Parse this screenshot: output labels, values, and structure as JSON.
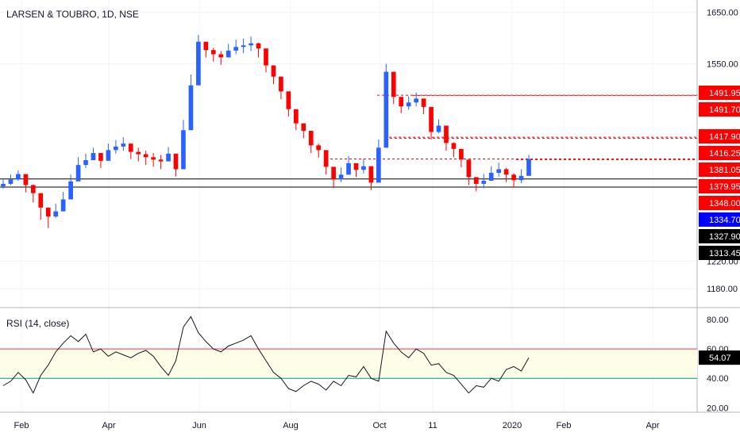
{
  "chart_data": [
    {
      "type": "candlestick",
      "title": "LARSEN & TOUBRO, 1D, NSE",
      "x_ticks": [
        "Feb",
        "Apr",
        "Jun",
        "Aug",
        "Oct",
        "11",
        "2020",
        "Feb",
        "Apr"
      ],
      "y_ticks": [
        "1650.00",
        "1550.00",
        "1220.00",
        "1180.00"
      ],
      "ylim": [
        1160,
        1665
      ],
      "axis_scale": "logarithmic",
      "horizontal_lines": [
        1348.0,
        1334.7
      ],
      "dashed_levels": [
        1491.95,
        1491.7,
        1417.9,
        1416.25,
        1381.05,
        1379.95
      ],
      "price_tags": [
        {
          "label": "1491.95",
          "value": 1491.95,
          "color": "#ff0000"
        },
        {
          "label": "1491.70",
          "value": 1491.7,
          "color": "#ff0000"
        },
        {
          "label": "1417.90",
          "value": 1417.9,
          "color": "#ff0000"
        },
        {
          "label": "1416.25",
          "value": 1416.25,
          "color": "#ff0000"
        },
        {
          "label": "1381.05",
          "value": 1381.05,
          "color": "#ff0000"
        },
        {
          "label": "1379.95",
          "value": 1379.95,
          "color": "#ff0000"
        },
        {
          "label": "1348.00",
          "value": 1348.0,
          "color": "#ff0000"
        },
        {
          "label": "1334.70",
          "value": 1334.7,
          "color": "#0000ff"
        },
        {
          "label": "1327.90",
          "value": 1327.9,
          "color": "#000000"
        },
        {
          "label": "1313.45",
          "value": 1313.45,
          "color": "#000000"
        }
      ],
      "series": [
        {
          "name": "close",
          "values": [
            1340,
            1347,
            1356,
            1338,
            1325,
            1302,
            1288,
            1296,
            1315,
            1344,
            1371,
            1379,
            1391,
            1378,
            1396,
            1402,
            1407,
            1393,
            1389,
            1384,
            1380,
            1377,
            1390,
            1364,
            1430,
            1510,
            1592,
            1576,
            1568,
            1562,
            1575,
            1582,
            1585,
            1589,
            1579,
            1547,
            1526,
            1499,
            1467,
            1442,
            1429,
            1404,
            1396,
            1368,
            1347,
            1355,
            1374,
            1363,
            1369,
            1342,
            1400,
            1535,
            1489,
            1472,
            1479,
            1486,
            1471,
            1427,
            1438,
            1408,
            1398,
            1380,
            1351,
            1340,
            1345,
            1358,
            1364,
            1355,
            1346,
            1353,
            1381
          ]
        },
        {
          "name": "upper_wick",
          "values": [
            1348,
            1355,
            1362,
            1349,
            1339,
            1311,
            1300,
            1308,
            1327,
            1355,
            1384,
            1390,
            1400,
            1391,
            1407,
            1413,
            1418,
            1405,
            1400,
            1395,
            1391,
            1388,
            1401,
            1378,
            1448,
            1530,
            1605,
            1590,
            1580,
            1574,
            1588,
            1596,
            1598,
            1602,
            1590,
            1560,
            1538,
            1511,
            1480,
            1453,
            1440,
            1415,
            1407,
            1380,
            1358,
            1367,
            1386,
            1373,
            1381,
            1354,
            1414,
            1550,
            1501,
            1484,
            1490,
            1497,
            1482,
            1439,
            1449,
            1420,
            1409,
            1391,
            1362,
            1350,
            1356,
            1369,
            1375,
            1366,
            1357,
            1364,
            1388
          ]
        },
        {
          "name": "lower_wick",
          "values": [
            1332,
            1338,
            1345,
            1326,
            1310,
            1283,
            1270,
            1286,
            1305,
            1332,
            1359,
            1366,
            1380,
            1366,
            1384,
            1390,
            1395,
            1381,
            1377,
            1371,
            1368,
            1364,
            1378,
            1352,
            1417,
            1497,
            1570,
            1562,
            1554,
            1548,
            1562,
            1568,
            1570,
            1574,
            1562,
            1534,
            1512,
            1485,
            1454,
            1430,
            1416,
            1391,
            1383,
            1355,
            1333,
            1343,
            1362,
            1351,
            1357,
            1330,
            1388,
            1470,
            1476,
            1460,
            1466,
            1472,
            1458,
            1414,
            1425,
            1395,
            1384,
            1367,
            1338,
            1328,
            1333,
            1346,
            1352,
            1343,
            1334,
            1341,
            1370
          ]
        }
      ]
    },
    {
      "type": "line",
      "title": "RSI (14, close)",
      "y_ticks": [
        "80.00",
        "60.00",
        "40.00",
        "20.00"
      ],
      "ylim": [
        18,
        86
      ],
      "bands": {
        "upper": 60,
        "lower": 40,
        "fill": "#fdfde8"
      },
      "last_value": "54.07",
      "series": [
        {
          "name": "RSI",
          "values": [
            35,
            38,
            44,
            39,
            30,
            42,
            49,
            58,
            64,
            69,
            65,
            70,
            58,
            60,
            55,
            58,
            56,
            54,
            57,
            59,
            55,
            48,
            42,
            52,
            75,
            82,
            71,
            65,
            60,
            58,
            62,
            64,
            66,
            69,
            60,
            52,
            44,
            40,
            33,
            31,
            35,
            38,
            36,
            32,
            38,
            35,
            42,
            41,
            48,
            40,
            38,
            72,
            64,
            58,
            54,
            60,
            57,
            49,
            50,
            44,
            42,
            36,
            30,
            35,
            34,
            40,
            38,
            46,
            48,
            45,
            54.07
          ]
        }
      ]
    }
  ],
  "rsi_last_label": "54.07",
  "colors": {
    "up": "#2962ff",
    "down": "#ff0000",
    "grid": "#f0f3fa",
    "axis": "#131722"
  }
}
